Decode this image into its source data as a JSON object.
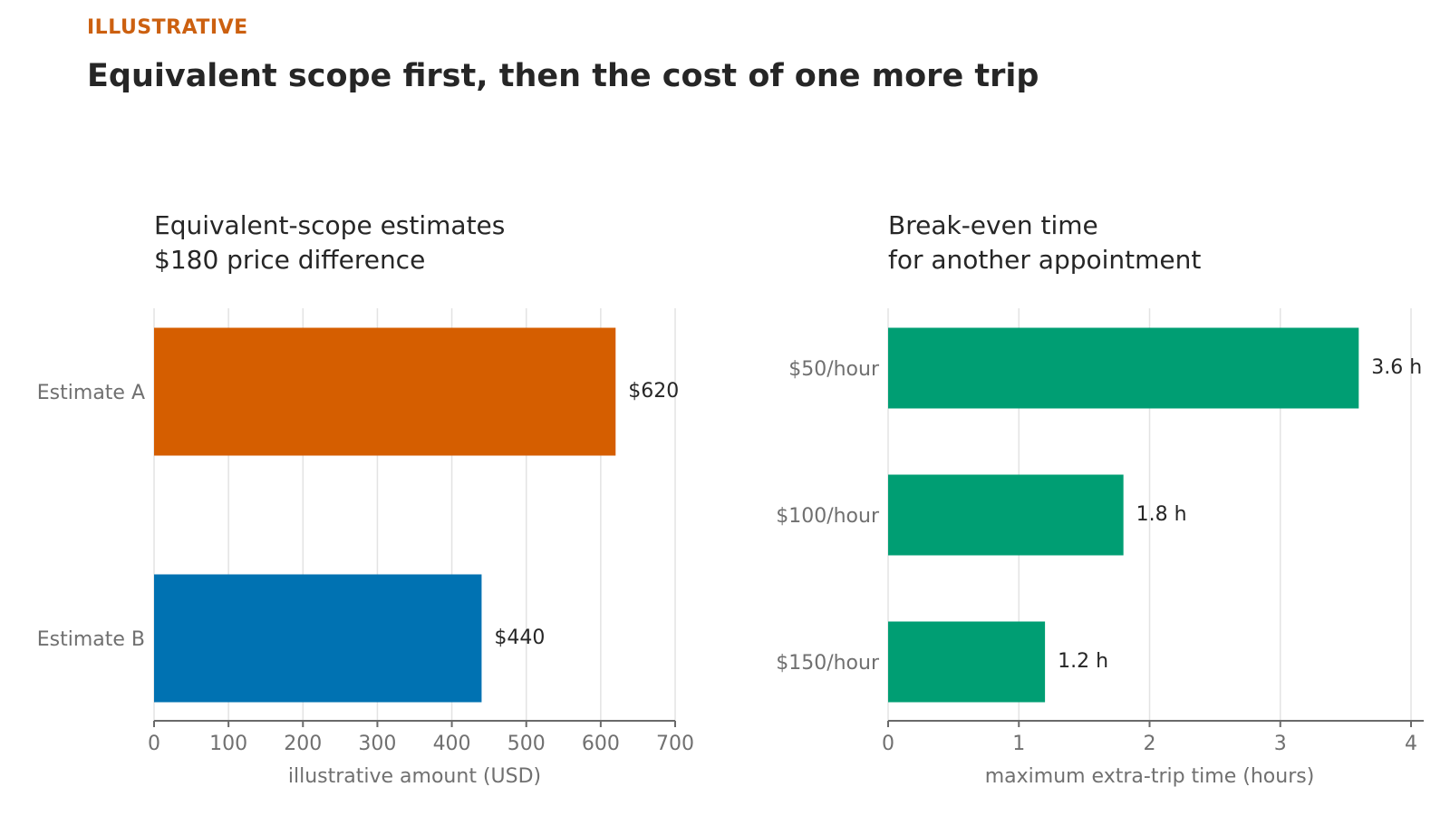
{
  "kicker": "ILLUSTRATIVE",
  "headline": "Equivalent scope first, then the cost of one more trip",
  "chart_data": [
    {
      "type": "bar",
      "orientation": "horizontal",
      "title": [
        "Equivalent-scope estimates",
        "$180 price difference"
      ],
      "categories": [
        "Estimate A",
        "Estimate B"
      ],
      "values": [
        620,
        440
      ],
      "data_labels": [
        "$620",
        "$440"
      ],
      "colors": [
        "#d55e00",
        "#0072b2"
      ],
      "xlabel": "illustrative amount (USD)",
      "xlim": [
        0,
        700
      ],
      "xticks": [
        0,
        100,
        200,
        300,
        400,
        500,
        600,
        700
      ],
      "xtick_labels": [
        "0",
        "100",
        "200",
        "300",
        "400",
        "500",
        "600",
        "700"
      ],
      "grid": "vertical"
    },
    {
      "type": "bar",
      "orientation": "horizontal",
      "title": [
        "Break-even time",
        "for another appointment"
      ],
      "categories": [
        "$50/hour",
        "$100/hour",
        "$150/hour"
      ],
      "values": [
        3.6,
        1.8,
        1.2
      ],
      "data_labels": [
        "3.6 h",
        "1.8 h",
        "1.2 h"
      ],
      "colors": [
        "#009e73",
        "#009e73",
        "#009e73"
      ],
      "xlabel": "maximum extra-trip time (hours)",
      "xlim": [
        0,
        4
      ],
      "xticks": [
        0,
        1,
        2,
        3,
        4
      ],
      "xtick_labels": [
        "0",
        "1",
        "2",
        "3",
        "4"
      ],
      "grid": "vertical"
    }
  ]
}
